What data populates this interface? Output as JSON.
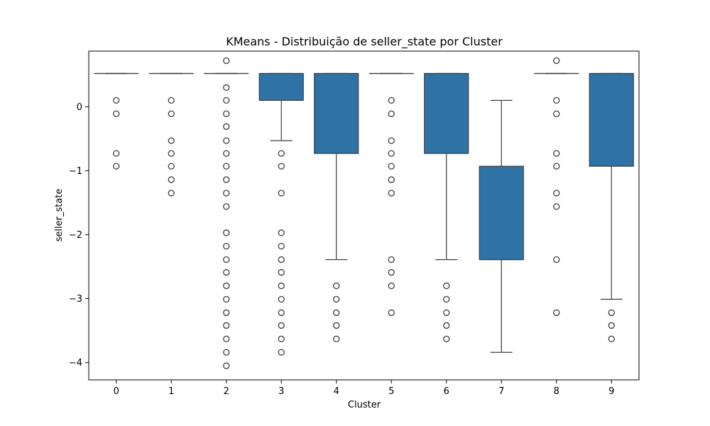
{
  "chart_data": {
    "type": "box",
    "title": "KMeans - Distribuição de seller_state por Cluster",
    "xlabel": "Cluster",
    "ylabel": "seller_state",
    "ylim": [
      -4.27,
      0.87
    ],
    "yticks": [
      0,
      -1,
      -2,
      -3,
      -4
    ],
    "ytick_labels": [
      "0",
      "−1",
      "−2",
      "−3",
      "−4"
    ],
    "grid": false,
    "colors": {
      "box_fill": "#2f72a6",
      "line": "#3d3d3d",
      "flier_edge": "#3d3d3d"
    },
    "categories": [
      "0",
      "1",
      "2",
      "3",
      "4",
      "5",
      "6",
      "7",
      "8",
      "9"
    ],
    "boxes": [
      {
        "cluster": "0",
        "q1": 0.52,
        "median": 0.52,
        "q3": 0.52,
        "whislo": 0.52,
        "whishi": 0.52,
        "fliers": [
          0.1,
          -0.11,
          -0.73,
          -0.93
        ]
      },
      {
        "cluster": "1",
        "q1": 0.52,
        "median": 0.52,
        "q3": 0.52,
        "whislo": 0.52,
        "whishi": 0.52,
        "fliers": [
          0.1,
          -0.11,
          -0.53,
          -0.73,
          -0.93,
          -1.14,
          -1.35
        ]
      },
      {
        "cluster": "2",
        "q1": 0.52,
        "median": 0.52,
        "q3": 0.52,
        "whislo": 0.52,
        "whishi": 0.52,
        "fliers": [
          0.72,
          0.3,
          0.1,
          -0.11,
          -0.31,
          -0.53,
          -0.73,
          -0.93,
          -1.14,
          -1.35,
          -1.56,
          -1.97,
          -2.18,
          -2.39,
          -2.59,
          -2.8,
          -3.01,
          -3.22,
          -3.42,
          -3.63,
          -3.84,
          -4.05
        ]
      },
      {
        "cluster": "3",
        "q1": 0.1,
        "median": 0.52,
        "q3": 0.52,
        "whislo": -0.53,
        "whishi": 0.52,
        "fliers": [
          -0.73,
          -0.93,
          -1.35,
          -1.97,
          -2.18,
          -2.39,
          -2.59,
          -2.8,
          -3.01,
          -3.22,
          -3.42,
          -3.63,
          -3.84
        ]
      },
      {
        "cluster": "4",
        "q1": -0.73,
        "median": 0.52,
        "q3": 0.52,
        "whislo": -2.39,
        "whishi": 0.52,
        "fliers": [
          -2.8,
          -3.01,
          -3.22,
          -3.42,
          -3.63
        ]
      },
      {
        "cluster": "5",
        "q1": 0.52,
        "median": 0.52,
        "q3": 0.52,
        "whislo": 0.52,
        "whishi": 0.52,
        "fliers": [
          0.1,
          -0.11,
          -0.53,
          -0.73,
          -0.93,
          -1.14,
          -1.35,
          -2.39,
          -2.59,
          -2.8,
          -3.22
        ]
      },
      {
        "cluster": "6",
        "q1": -0.73,
        "median": 0.52,
        "q3": 0.52,
        "whislo": -2.39,
        "whishi": 0.52,
        "fliers": [
          -2.8,
          -3.01,
          -3.22,
          -3.42,
          -3.63
        ]
      },
      {
        "cluster": "7",
        "q1": -2.39,
        "median": -2.39,
        "q3": -0.93,
        "whislo": -3.84,
        "whishi": 0.1,
        "fliers": []
      },
      {
        "cluster": "8",
        "q1": 0.52,
        "median": 0.52,
        "q3": 0.52,
        "whislo": 0.52,
        "whishi": 0.52,
        "fliers": [
          0.72,
          0.1,
          -0.11,
          -0.73,
          -0.93,
          -1.35,
          -1.56,
          -2.39,
          -3.22
        ]
      },
      {
        "cluster": "9",
        "q1": -0.93,
        "median": 0.52,
        "q3": 0.52,
        "whislo": -3.01,
        "whishi": 0.52,
        "fliers": [
          -3.22,
          -3.42,
          -3.63
        ]
      }
    ]
  }
}
